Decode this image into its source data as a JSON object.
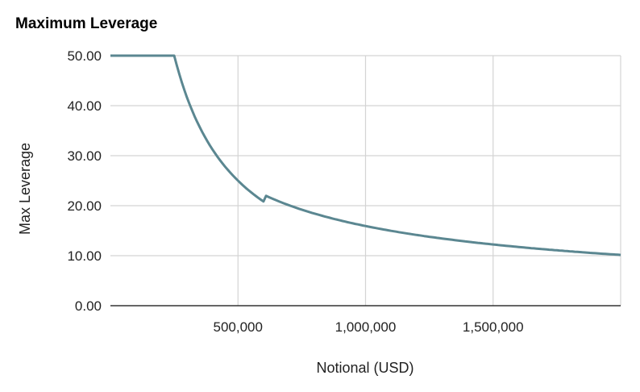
{
  "chart_data": {
    "type": "line",
    "title": "Maximum Leverage",
    "xlabel": "Notional (USD)",
    "ylabel": "Max Leverage",
    "xlim": [
      0,
      2000000
    ],
    "ylim": [
      0,
      50
    ],
    "x_ticks": [
      {
        "value": 500000,
        "label": "500,000"
      },
      {
        "value": 1000000,
        "label": "1,000,000"
      },
      {
        "value": 1500000,
        "label": "1,500,000"
      }
    ],
    "y_ticks": [
      {
        "value": 0,
        "label": "0.00"
      },
      {
        "value": 10,
        "label": "10.00"
      },
      {
        "value": 20,
        "label": "20.00"
      },
      {
        "value": 30,
        "label": "30.00"
      },
      {
        "value": 40,
        "label": "40.00"
      },
      {
        "value": 50,
        "label": "50.00"
      }
    ],
    "grid": true,
    "legend": "none",
    "series": [
      {
        "color": "#5b8791",
        "x": [
          0,
          250000,
          260000,
          280000,
          300000,
          330000,
          360000,
          400000,
          450000,
          500000,
          550000,
          600000,
          650000,
          700000,
          800000,
          900000,
          1000000,
          1100000,
          1200000,
          1300000,
          1400000,
          1500000,
          1600000,
          1700000,
          1800000,
          1900000,
          2000000
        ],
        "y": [
          50,
          50,
          48.1,
          44.6,
          41.7,
          37.9,
          34.7,
          31.3,
          27.8,
          25.0,
          22.7,
          20.8,
          19.2,
          17.9,
          15.6,
          13.9,
          15.6,
          14.9,
          14.2,
          13.6,
          13.0,
          12.5,
          12.0,
          11.6,
          11.2,
          10.8,
          10.4
        ]
      }
    ]
  }
}
